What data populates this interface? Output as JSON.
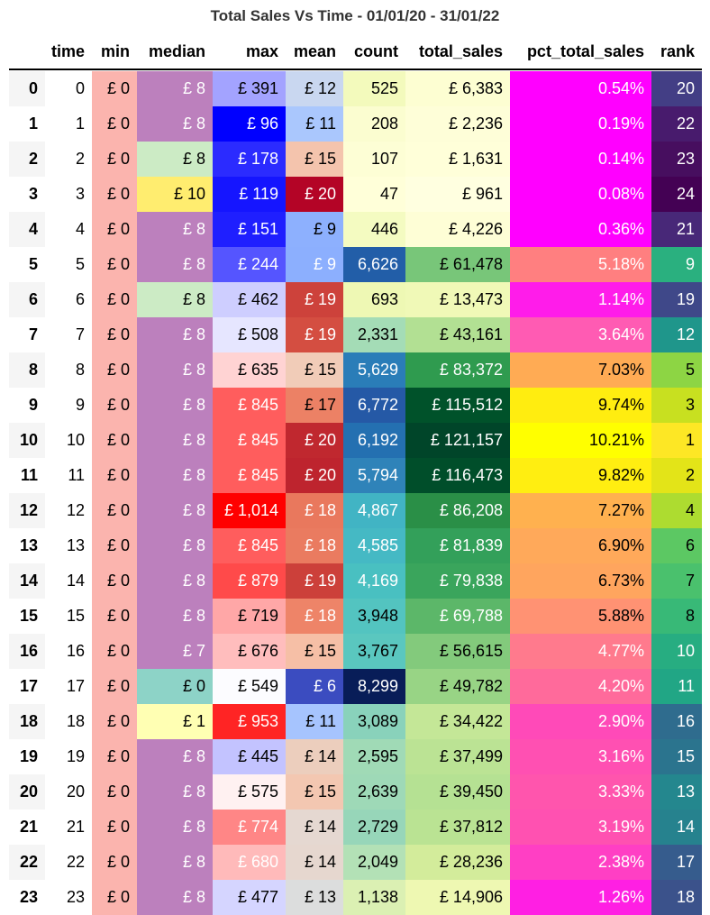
{
  "chart_data": {
    "type": "table",
    "title": "Total Sales Vs Time - 01/01/20 - 31/01/22",
    "index_values": [
      "0",
      "1",
      "2",
      "3",
      "4",
      "5",
      "6",
      "7",
      "8",
      "9",
      "10",
      "11",
      "12",
      "13",
      "14",
      "15",
      "16",
      "17",
      "18",
      "19",
      "20",
      "21",
      "22",
      "23"
    ],
    "columns": [
      {
        "key": "time",
        "label": "time",
        "values": [
          "0",
          "1",
          "2",
          "3",
          "4",
          "5",
          "6",
          "7",
          "8",
          "9",
          "10",
          "11",
          "12",
          "13",
          "14",
          "15",
          "16",
          "17",
          "18",
          "19",
          "20",
          "21",
          "22",
          "23"
        ],
        "colors": [
          "#ffffff",
          "#ffffff",
          "#ffffff",
          "#ffffff",
          "#ffffff",
          "#ffffff",
          "#ffffff",
          "#ffffff",
          "#ffffff",
          "#ffffff",
          "#ffffff",
          "#ffffff",
          "#ffffff",
          "#ffffff",
          "#ffffff",
          "#ffffff",
          "#ffffff",
          "#ffffff",
          "#ffffff",
          "#ffffff",
          "#ffffff",
          "#ffffff",
          "#ffffff",
          "#ffffff"
        ],
        "text_colors": [
          "#000",
          "#000",
          "#000",
          "#000",
          "#000",
          "#000",
          "#000",
          "#000",
          "#000",
          "#000",
          "#000",
          "#000",
          "#000",
          "#000",
          "#000",
          "#000",
          "#000",
          "#000",
          "#000",
          "#000",
          "#000",
          "#000",
          "#000",
          "#000"
        ]
      },
      {
        "key": "min",
        "label": "min",
        "values": [
          "£ 0",
          "£ 0",
          "£ 0",
          "£ 0",
          "£ 0",
          "£ 0",
          "£ 0",
          "£ 0",
          "£ 0",
          "£ 0",
          "£ 0",
          "£ 0",
          "£ 0",
          "£ 0",
          "£ 0",
          "£ 0",
          "£ 0",
          "£ 0",
          "£ 0",
          "£ 0",
          "£ 0",
          "£ 0",
          "£ 0",
          "£ 0"
        ],
        "colors": [
          "#fbb4ae",
          "#fbb4ae",
          "#fbb4ae",
          "#fbb4ae",
          "#fbb4ae",
          "#fbb4ae",
          "#fbb4ae",
          "#fbb4ae",
          "#fbb4ae",
          "#fbb4ae",
          "#fbb4ae",
          "#fbb4ae",
          "#fbb4ae",
          "#fbb4ae",
          "#fbb4ae",
          "#fbb4ae",
          "#fbb4ae",
          "#fbb4ae",
          "#fbb4ae",
          "#fbb4ae",
          "#fbb4ae",
          "#fbb4ae",
          "#fbb4ae",
          "#fbb4ae"
        ],
        "text_colors": [
          "#000",
          "#000",
          "#000",
          "#000",
          "#000",
          "#000",
          "#000",
          "#000",
          "#000",
          "#000",
          "#000",
          "#000",
          "#000",
          "#000",
          "#000",
          "#000",
          "#000",
          "#000",
          "#000",
          "#000",
          "#000",
          "#000",
          "#000",
          "#000"
        ]
      },
      {
        "key": "median",
        "label": "median",
        "values": [
          "£ 8",
          "£ 8",
          "£ 8",
          "£ 10",
          "£ 8",
          "£ 8",
          "£ 8",
          "£ 8",
          "£ 8",
          "£ 8",
          "£ 8",
          "£ 8",
          "£ 8",
          "£ 8",
          "£ 8",
          "£ 8",
          "£ 7",
          "£ 0",
          "£ 1",
          "£ 8",
          "£ 8",
          "£ 8",
          "£ 8",
          "£ 8"
        ],
        "colors": [
          "#bc80bd",
          "#bc80bd",
          "#ccebc5",
          "#ffed6f",
          "#bc80bd",
          "#bc80bd",
          "#ccebc5",
          "#bc80bd",
          "#bc80bd",
          "#bc80bd",
          "#bc80bd",
          "#bc80bd",
          "#bc80bd",
          "#bc80bd",
          "#bc80bd",
          "#bc80bd",
          "#bc80bd",
          "#8dd3c7",
          "#ffffb3",
          "#bc80bd",
          "#bc80bd",
          "#bc80bd",
          "#bc80bd",
          "#bc80bd"
        ],
        "text_colors": [
          "#fff",
          "#fff",
          "#000",
          "#000",
          "#fff",
          "#fff",
          "#000",
          "#fff",
          "#fff",
          "#fff",
          "#fff",
          "#fff",
          "#fff",
          "#fff",
          "#fff",
          "#fff",
          "#fff",
          "#000",
          "#000",
          "#fff",
          "#fff",
          "#fff",
          "#fff",
          "#fff"
        ]
      },
      {
        "key": "max",
        "label": "max",
        "values": [
          "£ 391",
          "£ 96",
          "£ 178",
          "£ 119",
          "£ 151",
          "£ 244",
          "£ 462",
          "£ 508",
          "£ 635",
          "£ 845",
          "£ 845",
          "£ 845",
          "£ 1,014",
          "£ 845",
          "£ 879",
          "£ 719",
          "£ 676",
          "£ 549",
          "£ 953",
          "£ 445",
          "£ 575",
          "£ 774",
          "£ 680",
          "£ 477"
        ],
        "colors": [
          "#a3a3ff",
          "#0000ff",
          "#2b2bff",
          "#1515ff",
          "#1f1fff",
          "#5555ff",
          "#ceceff",
          "#e6e6ff",
          "#ffd3d3",
          "#ff5d5d",
          "#ff5d5d",
          "#ff5d5d",
          "#ff0000",
          "#ff5d5d",
          "#ff4a4a",
          "#ffa7a7",
          "#ffbdbd",
          "#fcfcff",
          "#ff2424",
          "#c3c3ff",
          "#fff1f1",
          "#ff8686",
          "#ffbaba",
          "#d5d5ff"
        ],
        "text_colors": [
          "#000",
          "#fff",
          "#fff",
          "#fff",
          "#fff",
          "#fff",
          "#000",
          "#000",
          "#000",
          "#fff",
          "#fff",
          "#fff",
          "#fff",
          "#fff",
          "#fff",
          "#000",
          "#000",
          "#000",
          "#fff",
          "#000",
          "#000",
          "#fff",
          "#fff",
          "#000"
        ]
      },
      {
        "key": "mean",
        "label": "mean",
        "values": [
          "£ 12",
          "£ 11",
          "£ 15",
          "£ 20",
          "£ 9",
          "£ 9",
          "£ 19",
          "£ 19",
          "£ 15",
          "£ 17",
          "£ 20",
          "£ 20",
          "£ 18",
          "£ 18",
          "£ 19",
          "£ 18",
          "£ 15",
          "£ 6",
          "£ 11",
          "£ 14",
          "£ 15",
          "£ 14",
          "£ 14",
          "£ 13"
        ],
        "colors": [
          "#c9d7f0",
          "#aac7fd",
          "#f4c4ad",
          "#b40426",
          "#8db0fe",
          "#8caffe",
          "#cd423b",
          "#d44e41",
          "#f1ccb8",
          "#ec8165",
          "#c0282f",
          "#be242e",
          "#e9785d",
          "#ea7b60",
          "#cc403a",
          "#ee8468",
          "#f6bfa6",
          "#3b4cc0",
          "#a6c4fe",
          "#eccebd",
          "#f3c7b1",
          "#e5d8d1",
          "#e6d7cf",
          "#dcdddd"
        ],
        "text_colors": [
          "#000",
          "#000",
          "#000",
          "#fff",
          "#000",
          "#fff",
          "#fff",
          "#fff",
          "#000",
          "#000",
          "#fff",
          "#fff",
          "#fff",
          "#fff",
          "#fff",
          "#fff",
          "#000",
          "#fff",
          "#000",
          "#000",
          "#000",
          "#000",
          "#000",
          "#000"
        ]
      },
      {
        "key": "count",
        "label": "count",
        "values": [
          "525",
          "208",
          "107",
          "47",
          "446",
          "6,626",
          "693",
          "2,331",
          "5,629",
          "6,772",
          "6,192",
          "5,794",
          "4,867",
          "4,585",
          "4,169",
          "3,948",
          "3,767",
          "8,299",
          "3,089",
          "2,595",
          "2,639",
          "2,729",
          "2,049",
          "1,138"
        ],
        "colors": [
          "#f3fabc",
          "#fbfdd0",
          "#fdfed5",
          "#ffffd9",
          "#f4fbc1",
          "#225ea8",
          "#eef8b4",
          "#a4dcb6",
          "#2a7db8",
          "#2559a6",
          "#2470b1",
          "#2f83b9",
          "#41b4c4",
          "#45b9c4",
          "#49c0c1",
          "#53c4c0",
          "#5ac7bf",
          "#081d58",
          "#89d2bb",
          "#a0dab6",
          "#9ed9b7",
          "#97d6b9",
          "#b3e1b6",
          "#dbf0b3"
        ],
        "text_colors": [
          "#000",
          "#000",
          "#000",
          "#000",
          "#000",
          "#fff",
          "#000",
          "#000",
          "#fff",
          "#fff",
          "#fff",
          "#fff",
          "#fff",
          "#fff",
          "#fff",
          "#000",
          "#000",
          "#fff",
          "#000",
          "#000",
          "#000",
          "#000",
          "#000",
          "#000"
        ]
      },
      {
        "key": "total_sales",
        "label": "total_sales",
        "values": [
          "£ 6,383",
          "£ 2,236",
          "£ 1,631",
          "£ 961",
          "£ 4,226",
          "£ 61,478",
          "£ 13,473",
          "£ 43,161",
          "£ 83,372",
          "£ 115,512",
          "£ 121,157",
          "£ 116,473",
          "£ 86,208",
          "£ 81,839",
          "£ 79,838",
          "£ 69,788",
          "£ 56,615",
          "£ 49,782",
          "£ 34,422",
          "£ 37,499",
          "£ 39,450",
          "£ 37,812",
          "£ 28,236",
          "£ 14,906"
        ],
        "colors": [
          "#fdfed2",
          "#fefed8",
          "#ffffd9",
          "#ffffe0",
          "#fefed6",
          "#78c679",
          "#f0f9b7",
          "#b2e093",
          "#2f9b4f",
          "#00522a",
          "#004529",
          "#004e2a",
          "#2a8f47",
          "#33a05a",
          "#3aa55c",
          "#5cb769",
          "#83ca7c",
          "#98d485",
          "#c4e797",
          "#bbe394",
          "#b5e193",
          "#bae393",
          "#d3ec9b",
          "#eef8b2"
        ],
        "text_colors": [
          "#000",
          "#000",
          "#000",
          "#000",
          "#000",
          "#000",
          "#000",
          "#000",
          "#fff",
          "#fff",
          "#fff",
          "#fff",
          "#fff",
          "#fff",
          "#fff",
          "#fff",
          "#000",
          "#000",
          "#000",
          "#000",
          "#000",
          "#000",
          "#000",
          "#000"
        ]
      },
      {
        "key": "pct_total_sales",
        "label": "pct_total_sales",
        "values": [
          "0.54%",
          "0.19%",
          "0.14%",
          "0.08%",
          "0.36%",
          "5.18%",
          "1.14%",
          "3.64%",
          "7.03%",
          "9.74%",
          "10.21%",
          "9.82%",
          "7.27%",
          "6.90%",
          "6.73%",
          "5.88%",
          "4.77%",
          "4.20%",
          "2.90%",
          "3.16%",
          "3.33%",
          "3.19%",
          "2.38%",
          "1.26%"
        ],
        "colors": [
          "#ff00ff",
          "#ff00ff",
          "#ff00ff",
          "#ff00ff",
          "#ff00ff",
          "#ff7f80",
          "#ff1cea",
          "#ff5bb3",
          "#ffab54",
          "#ffed10",
          "#ffff00",
          "#ffee11",
          "#ffb14f",
          "#ffa95a",
          "#ffa55e",
          "#ff9273",
          "#ff7a8d",
          "#ff6a9b",
          "#ff4ab8",
          "#ff50b2",
          "#ff55ad",
          "#ff51b1",
          "#ff3fc4",
          "#ff1fe3"
        ],
        "text_colors": [
          "#fff",
          "#fff",
          "#fff",
          "#fff",
          "#fff",
          "#fff",
          "#fff",
          "#fff",
          "#000",
          "#000",
          "#000",
          "#000",
          "#000",
          "#000",
          "#000",
          "#000",
          "#fff",
          "#fff",
          "#fff",
          "#fff",
          "#fff",
          "#fff",
          "#fff",
          "#fff"
        ]
      },
      {
        "key": "rank",
        "label": "rank",
        "values": [
          "20",
          "22",
          "23",
          "24",
          "21",
          "9",
          "19",
          "12",
          "5",
          "3",
          "1",
          "2",
          "4",
          "6",
          "7",
          "8",
          "10",
          "11",
          "16",
          "15",
          "13",
          "14",
          "17",
          "18"
        ],
        "colors": [
          "#433e85",
          "#481b6d",
          "#470e5f",
          "#440154",
          "#482878",
          "#2ab07f",
          "#3f4889",
          "#1f968b",
          "#8dd544",
          "#c8e020",
          "#fde725",
          "#e3e418",
          "#addc30",
          "#5cc863",
          "#4ac16d",
          "#38b977",
          "#27ad81",
          "#21a685",
          "#2f6c8e",
          "#2b748e",
          "#24878e",
          "#26828e",
          "#365c8d",
          "#3b528b"
        ],
        "text_colors": [
          "#fff",
          "#fff",
          "#fff",
          "#fff",
          "#fff",
          "#fff",
          "#fff",
          "#fff",
          "#000",
          "#000",
          "#000",
          "#000",
          "#000",
          "#000",
          "#000",
          "#000",
          "#fff",
          "#fff",
          "#fff",
          "#fff",
          "#fff",
          "#fff",
          "#fff",
          "#fff"
        ]
      }
    ]
  }
}
